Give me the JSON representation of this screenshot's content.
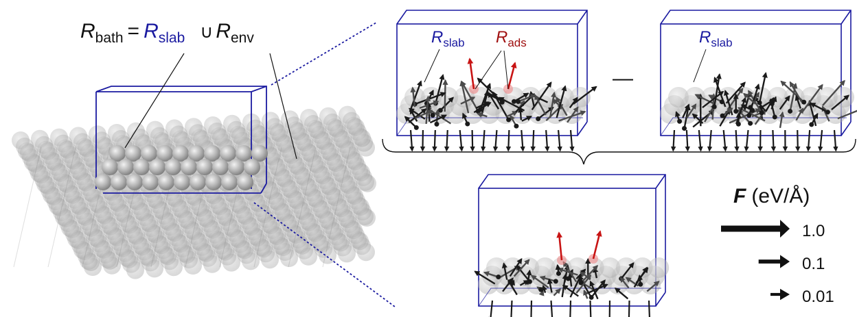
{
  "equation": {
    "lhs_symbol": "R",
    "lhs_sub": "bath",
    "equals": "=",
    "slab_symbol": "R",
    "slab_sub": "slab",
    "union": "∪",
    "env_symbol": "R",
    "env_sub": "env"
  },
  "panel_top_left": {
    "slab_symbol": "R",
    "slab_sub": "slab",
    "ads_symbol": "R",
    "ads_sub": "ads"
  },
  "minus": "—",
  "panel_top_right": {
    "slab_symbol": "R",
    "slab_sub": "slab"
  },
  "legend": {
    "title_symbol": "F",
    "title_unit": "(eV/Å)",
    "entries": [
      {
        "label": "1.0",
        "magnitude": 1.0
      },
      {
        "label": "0.1",
        "magnitude": 0.1
      },
      {
        "label": "0.01",
        "magnitude": 0.01
      }
    ]
  },
  "colors": {
    "box": "#1a1aa0",
    "slab_label": "#1a1aa0",
    "ads_label": "#a01010",
    "ads_arrow": "#c81414",
    "arrow": "#1a1a1a",
    "atom": "#9a9a9a"
  }
}
